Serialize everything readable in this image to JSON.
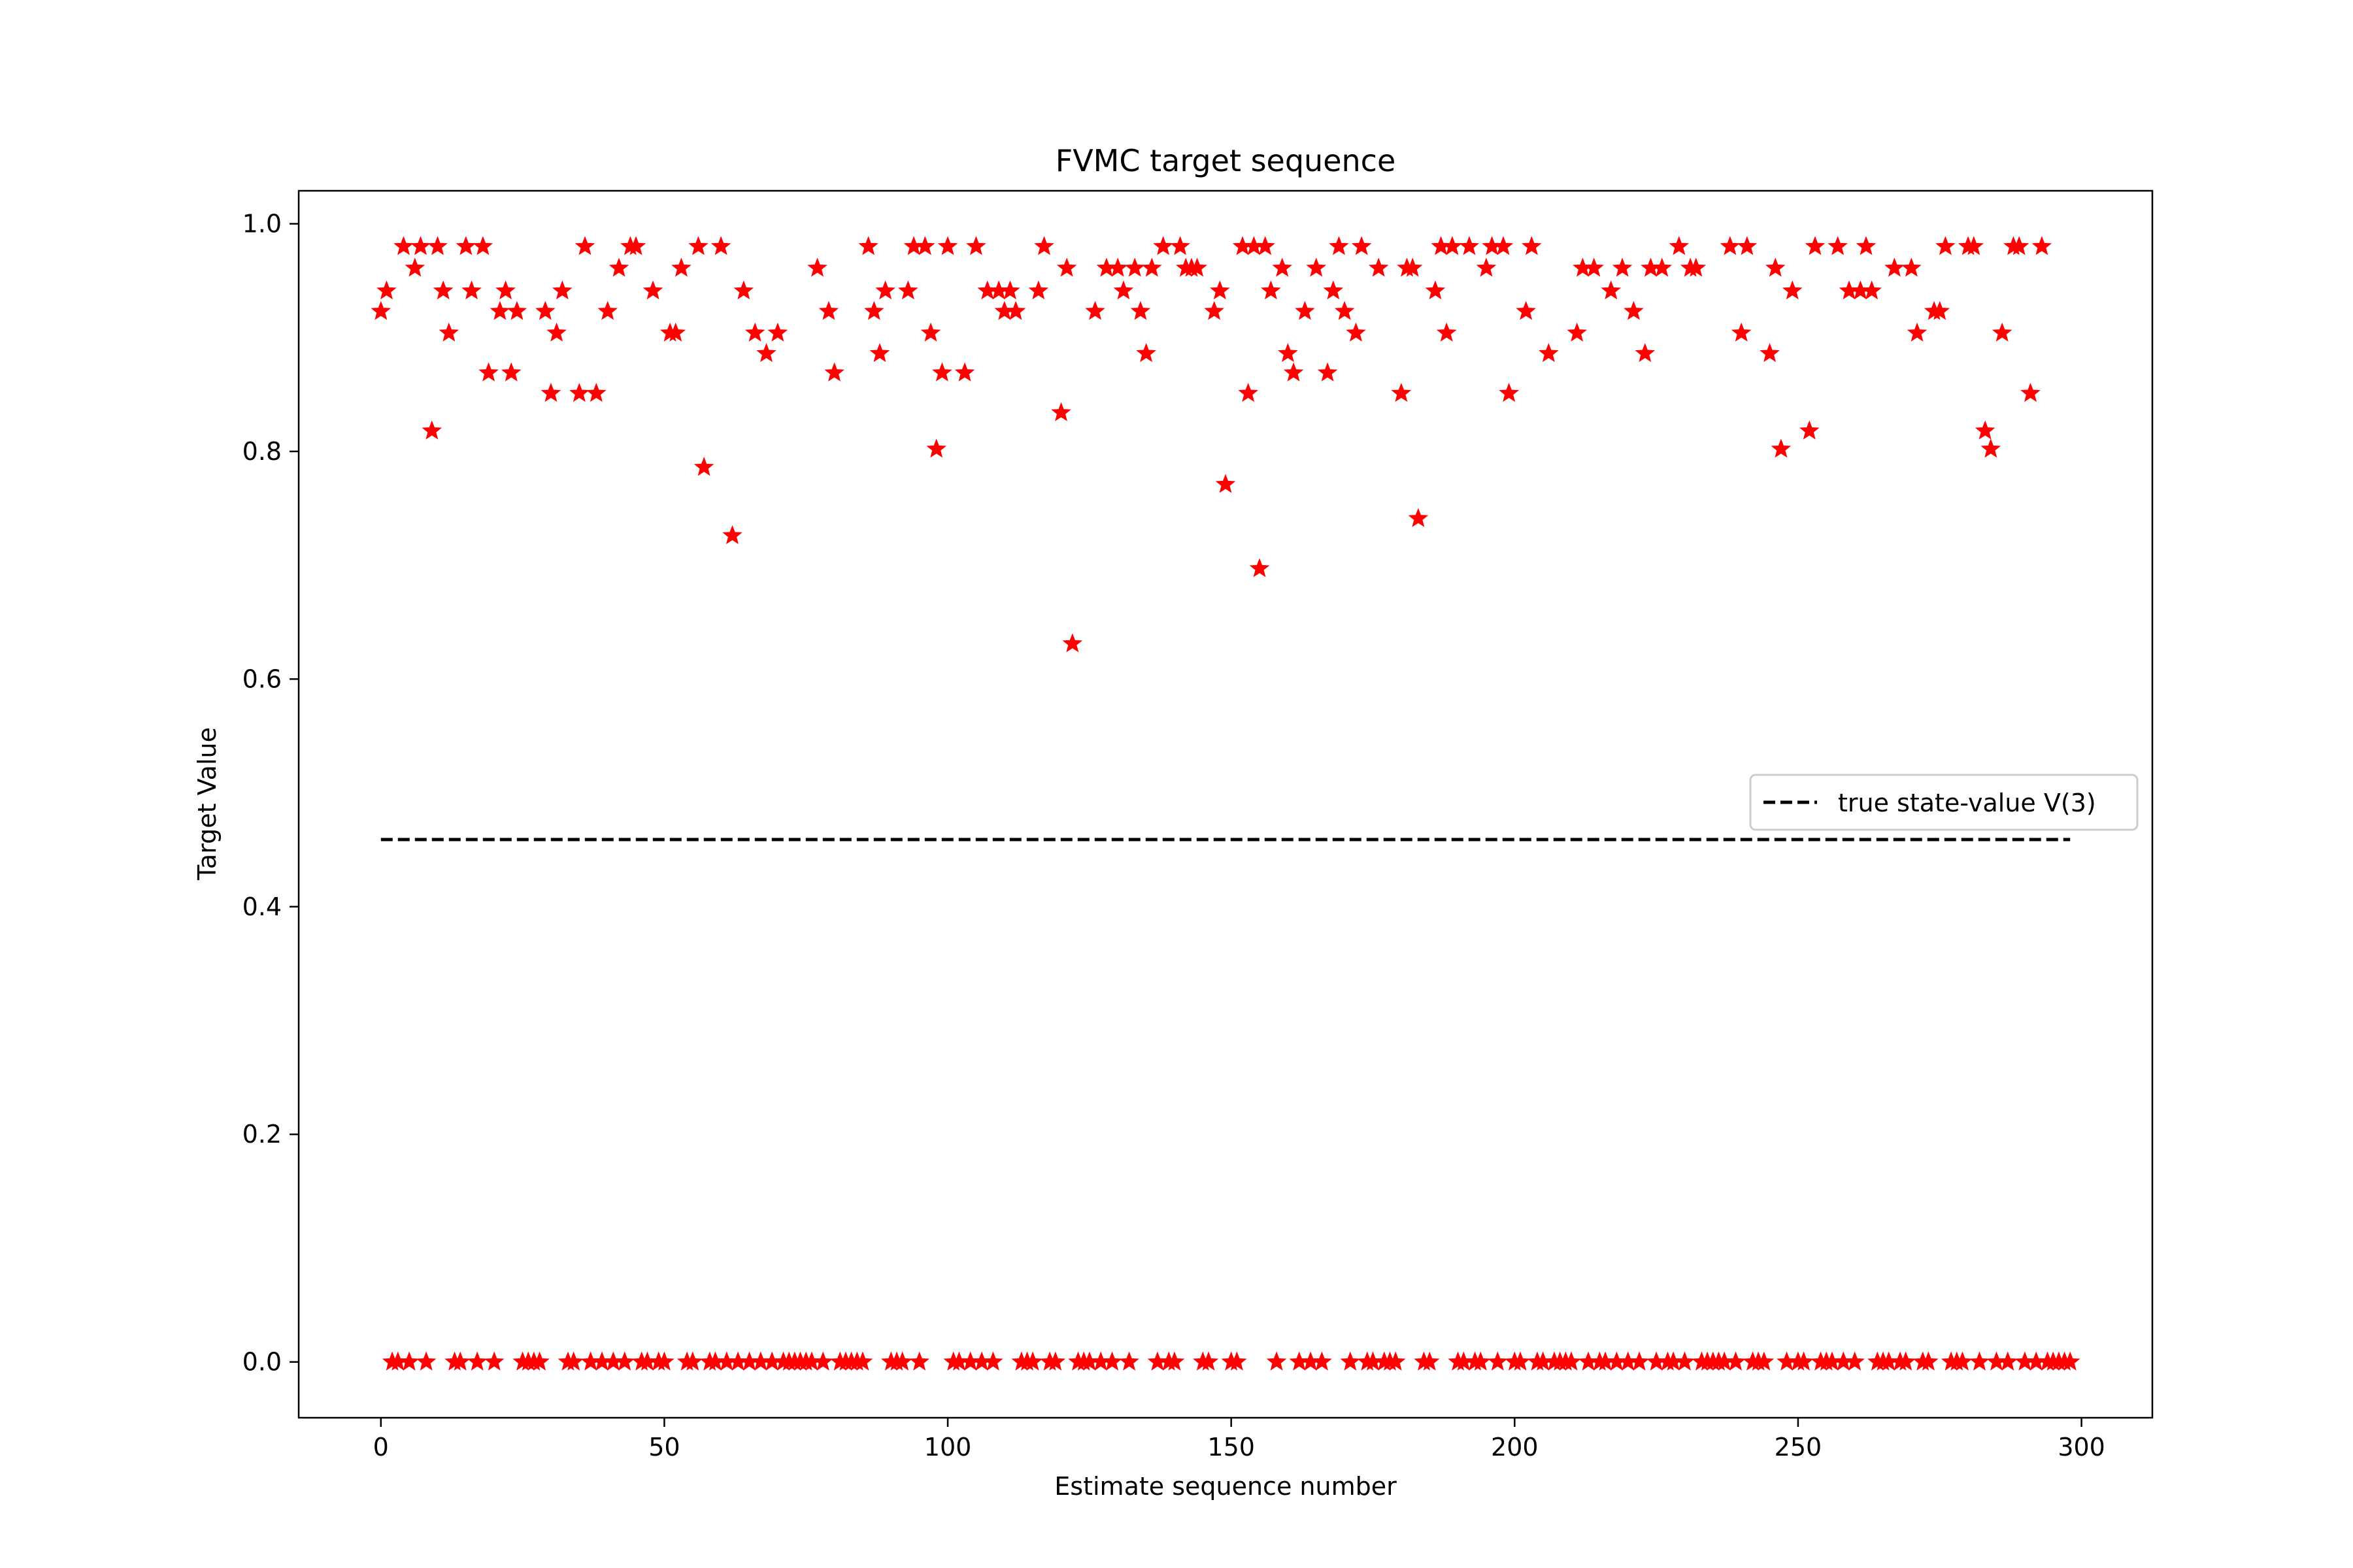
{
  "chart_data": {
    "type": "scatter",
    "title": "FVMC target sequence",
    "xlabel": "Estimate sequence number",
    "ylabel": "Target Value",
    "xlim": [
      -14.5,
      312.5
    ],
    "ylim": [
      -0.049,
      1.029
    ],
    "xticks": [
      0,
      50,
      100,
      150,
      200,
      250,
      300
    ],
    "xtick_labels": [
      "0",
      "50",
      "100",
      "150",
      "200",
      "250",
      "300"
    ],
    "yticks": [
      0.0,
      0.2,
      0.4,
      0.6,
      0.8,
      1.0
    ],
    "ytick_labels": [
      "0.0",
      "0.2",
      "0.4",
      "0.6",
      "0.8",
      "1.0"
    ],
    "grid": false,
    "legend_position": "center-right",
    "series": [
      {
        "kind": "markers",
        "marker": "star",
        "color": "#ff0000",
        "points": [
          [
            0,
            0.923
          ],
          [
            1,
            0.941
          ],
          [
            2,
            0
          ],
          [
            3,
            0
          ],
          [
            4,
            0.98
          ],
          [
            5,
            0
          ],
          [
            6,
            0.961
          ],
          [
            7,
            0.98
          ],
          [
            8,
            0
          ],
          [
            9,
            0.818
          ],
          [
            10,
            0.98
          ],
          [
            11,
            0.941
          ],
          [
            12,
            0.904
          ],
          [
            13,
            0
          ],
          [
            14,
            0
          ],
          [
            15,
            0.98
          ],
          [
            16,
            0.941
          ],
          [
            17,
            0
          ],
          [
            18,
            0.98
          ],
          [
            19,
            0.869
          ],
          [
            20,
            0
          ],
          [
            21,
            0.923
          ],
          [
            22,
            0.941
          ],
          [
            23,
            0.869
          ],
          [
            24,
            0.923
          ],
          [
            25,
            0
          ],
          [
            26,
            0
          ],
          [
            27,
            0
          ],
          [
            28,
            0
          ],
          [
            29,
            0.923
          ],
          [
            30,
            0.851
          ],
          [
            31,
            0.904
          ],
          [
            32,
            0.941
          ],
          [
            33,
            0
          ],
          [
            34,
            0
          ],
          [
            35,
            0.851
          ],
          [
            36,
            0.98
          ],
          [
            37,
            0
          ],
          [
            38,
            0.851
          ],
          [
            39,
            0
          ],
          [
            40,
            0.923
          ],
          [
            41,
            0
          ],
          [
            42,
            0.961
          ],
          [
            43,
            0
          ],
          [
            44,
            0.98
          ],
          [
            45,
            0.98
          ],
          [
            46,
            0
          ],
          [
            47,
            0
          ],
          [
            48,
            0.941
          ],
          [
            49,
            0
          ],
          [
            50,
            0
          ],
          [
            51,
            0.904
          ],
          [
            52,
            0.904
          ],
          [
            53,
            0.961
          ],
          [
            54,
            0
          ],
          [
            55,
            0
          ],
          [
            56,
            0.98
          ],
          [
            57,
            0.786
          ],
          [
            58,
            0
          ],
          [
            59,
            0
          ],
          [
            60,
            0.98
          ],
          [
            61,
            0
          ],
          [
            62,
            0.726
          ],
          [
            63,
            0
          ],
          [
            64,
            0.941
          ],
          [
            65,
            0
          ],
          [
            66,
            0.904
          ],
          [
            67,
            0
          ],
          [
            68,
            0.886
          ],
          [
            69,
            0
          ],
          [
            70,
            0.904
          ],
          [
            71,
            0
          ],
          [
            72,
            0
          ],
          [
            73,
            0
          ],
          [
            74,
            0
          ],
          [
            75,
            0
          ],
          [
            76,
            0
          ],
          [
            77,
            0.961
          ],
          [
            78,
            0
          ],
          [
            79,
            0.923
          ],
          [
            80,
            0.869
          ],
          [
            81,
            0
          ],
          [
            82,
            0
          ],
          [
            83,
            0
          ],
          [
            84,
            0
          ],
          [
            85,
            0
          ],
          [
            86,
            0.98
          ],
          [
            87,
            0.923
          ],
          [
            88,
            0.886
          ],
          [
            89,
            0.941
          ],
          [
            90,
            0
          ],
          [
            91,
            0
          ],
          [
            92,
            0
          ],
          [
            93,
            0.941
          ],
          [
            94,
            0.98
          ],
          [
            95,
            0
          ],
          [
            96,
            0.98
          ],
          [
            97,
            0.904
          ],
          [
            98,
            0.802
          ],
          [
            99,
            0.869
          ],
          [
            100,
            0.98
          ],
          [
            101,
            0
          ],
          [
            102,
            0
          ],
          [
            103,
            0.869
          ],
          [
            104,
            0
          ],
          [
            105,
            0.98
          ],
          [
            106,
            0
          ],
          [
            107,
            0.941
          ],
          [
            108,
            0
          ],
          [
            109,
            0.941
          ],
          [
            110,
            0.923
          ],
          [
            111,
            0.941
          ],
          [
            112,
            0.923
          ],
          [
            113,
            0
          ],
          [
            114,
            0
          ],
          [
            115,
            0
          ],
          [
            116,
            0.941
          ],
          [
            117,
            0.98
          ],
          [
            118,
            0
          ],
          [
            119,
            0
          ],
          [
            120,
            0.834
          ],
          [
            121,
            0.961
          ],
          [
            122,
            0.631
          ],
          [
            123,
            0
          ],
          [
            124,
            0
          ],
          [
            125,
            0
          ],
          [
            126,
            0.923
          ],
          [
            127,
            0
          ],
          [
            128,
            0.961
          ],
          [
            129,
            0
          ],
          [
            130,
            0.961
          ],
          [
            131,
            0.941
          ],
          [
            132,
            0
          ],
          [
            133,
            0.961
          ],
          [
            134,
            0.923
          ],
          [
            135,
            0.886
          ],
          [
            136,
            0.961
          ],
          [
            137,
            0
          ],
          [
            138,
            0.98
          ],
          [
            139,
            0
          ],
          [
            140,
            0
          ],
          [
            141,
            0.98
          ],
          [
            142,
            0.961
          ],
          [
            143,
            0.961
          ],
          [
            144,
            0.961
          ],
          [
            145,
            0
          ],
          [
            146,
            0
          ],
          [
            147,
            0.923
          ],
          [
            148,
            0.941
          ],
          [
            149,
            0.771
          ],
          [
            150,
            0
          ],
          [
            151,
            0
          ],
          [
            152,
            0.98
          ],
          [
            153,
            0.851
          ],
          [
            154,
            0.98
          ],
          [
            155,
            0.697
          ],
          [
            156,
            0.98
          ],
          [
            157,
            0.941
          ],
          [
            158,
            0
          ],
          [
            159,
            0.961
          ],
          [
            160,
            0.886
          ],
          [
            161,
            0.869
          ],
          [
            162,
            0
          ],
          [
            163,
            0.923
          ],
          [
            164,
            0
          ],
          [
            165,
            0.961
          ],
          [
            166,
            0
          ],
          [
            167,
            0.869
          ],
          [
            168,
            0.941
          ],
          [
            169,
            0.98
          ],
          [
            170,
            0.923
          ],
          [
            171,
            0
          ],
          [
            172,
            0.904
          ],
          [
            173,
            0.98
          ],
          [
            174,
            0
          ],
          [
            175,
            0
          ],
          [
            176,
            0.961
          ],
          [
            177,
            0
          ],
          [
            178,
            0
          ],
          [
            179,
            0
          ],
          [
            180,
            0.851
          ],
          [
            181,
            0.961
          ],
          [
            182,
            0.961
          ],
          [
            183,
            0.741
          ],
          [
            184,
            0
          ],
          [
            185,
            0
          ],
          [
            186,
            0.941
          ],
          [
            187,
            0.98
          ],
          [
            188,
            0.904
          ],
          [
            189,
            0.98
          ],
          [
            190,
            0
          ],
          [
            191,
            0
          ],
          [
            192,
            0.98
          ],
          [
            193,
            0
          ],
          [
            194,
            0
          ],
          [
            195,
            0.961
          ],
          [
            196,
            0.98
          ],
          [
            197,
            0
          ],
          [
            198,
            0.98
          ],
          [
            199,
            0.851
          ],
          [
            200,
            0
          ],
          [
            201,
            0
          ],
          [
            202,
            0.923
          ],
          [
            203,
            0.98
          ],
          [
            204,
            0
          ],
          [
            205,
            0
          ],
          [
            206,
            0.886
          ],
          [
            207,
            0
          ],
          [
            208,
            0
          ],
          [
            209,
            0
          ],
          [
            210,
            0
          ],
          [
            211,
            0.904
          ],
          [
            212,
            0.961
          ],
          [
            213,
            0
          ],
          [
            214,
            0.961
          ],
          [
            215,
            0
          ],
          [
            216,
            0
          ],
          [
            217,
            0.941
          ],
          [
            218,
            0
          ],
          [
            219,
            0.961
          ],
          [
            220,
            0
          ],
          [
            221,
            0.923
          ],
          [
            222,
            0
          ],
          [
            223,
            0.886
          ],
          [
            224,
            0.961
          ],
          [
            225,
            0
          ],
          [
            226,
            0.961
          ],
          [
            227,
            0
          ],
          [
            228,
            0
          ],
          [
            229,
            0.98
          ],
          [
            230,
            0
          ],
          [
            231,
            0.961
          ],
          [
            232,
            0.961
          ],
          [
            233,
            0
          ],
          [
            234,
            0
          ],
          [
            235,
            0
          ],
          [
            236,
            0
          ],
          [
            237,
            0
          ],
          [
            238,
            0.98
          ],
          [
            239,
            0
          ],
          [
            240,
            0.904
          ],
          [
            241,
            0.98
          ],
          [
            242,
            0
          ],
          [
            243,
            0
          ],
          [
            244,
            0
          ],
          [
            245,
            0.886
          ],
          [
            246,
            0.961
          ],
          [
            247,
            0.802
          ],
          [
            248,
            0
          ],
          [
            249,
            0.941
          ],
          [
            250,
            0
          ],
          [
            251,
            0
          ],
          [
            252,
            0.818
          ],
          [
            253,
            0.98
          ],
          [
            254,
            0
          ],
          [
            255,
            0
          ],
          [
            256,
            0
          ],
          [
            257,
            0.98
          ],
          [
            258,
            0
          ],
          [
            259,
            0.941
          ],
          [
            260,
            0
          ],
          [
            261,
            0.941
          ],
          [
            262,
            0.98
          ],
          [
            263,
            0.941
          ],
          [
            264,
            0
          ],
          [
            265,
            0
          ],
          [
            266,
            0
          ],
          [
            267,
            0.961
          ],
          [
            268,
            0
          ],
          [
            269,
            0
          ],
          [
            270,
            0.961
          ],
          [
            271,
            0.904
          ],
          [
            272,
            0
          ],
          [
            273,
            0
          ],
          [
            274,
            0.923
          ],
          [
            275,
            0.923
          ],
          [
            276,
            0.98
          ],
          [
            277,
            0
          ],
          [
            278,
            0
          ],
          [
            279,
            0
          ],
          [
            280,
            0.98
          ],
          [
            281,
            0.98
          ],
          [
            282,
            0
          ],
          [
            283,
            0.818
          ],
          [
            284,
            0.802
          ],
          [
            285,
            0
          ],
          [
            286,
            0.904
          ],
          [
            287,
            0
          ],
          [
            288,
            0.98
          ],
          [
            289,
            0.98
          ],
          [
            290,
            0
          ],
          [
            291,
            0.851
          ],
          [
            292,
            0
          ],
          [
            293,
            0.98
          ],
          [
            294,
            0
          ],
          [
            295,
            0
          ],
          [
            296,
            0
          ],
          [
            297,
            0
          ],
          [
            298,
            0
          ]
        ]
      },
      {
        "name": "true state-value V(3)",
        "kind": "line",
        "style": "dashed",
        "color": "#000000",
        "x": [
          0,
          298
        ],
        "y": [
          0.459,
          0.459
        ]
      }
    ]
  }
}
